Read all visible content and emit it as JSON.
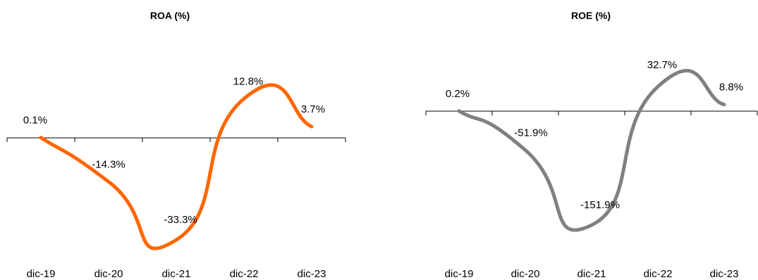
{
  "chart_data": [
    {
      "type": "line",
      "title": "ROA (%)",
      "categories": [
        "dic-19",
        "dic-20",
        "dic-21",
        "dic-22",
        "dic-23"
      ],
      "series": [
        {
          "values": [
            0.1,
            -14.3,
            -33.3,
            12.8,
            3.7
          ],
          "labels": [
            "0.1%",
            "-14.3%",
            "-33.3%",
            "12.8%",
            "3.7%"
          ],
          "color": "#FF6600"
        }
      ],
      "xlabel": "",
      "ylabel": "",
      "grid": false,
      "legend": "none"
    },
    {
      "type": "line",
      "title": "ROE (%)",
      "categories": [
        "dic-19",
        "dic-20",
        "dic-21",
        "dic-22",
        "dic-23"
      ],
      "series": [
        {
          "values": [
            0.2,
            -51.9,
            -151.9,
            32.7,
            8.8
          ],
          "labels": [
            "0.2%",
            "-51.9%",
            "-151.9%",
            "32.7%",
            "8.8%"
          ],
          "color": "#808080"
        }
      ],
      "xlabel": "",
      "ylabel": "",
      "grid": false,
      "legend": "none"
    }
  ]
}
